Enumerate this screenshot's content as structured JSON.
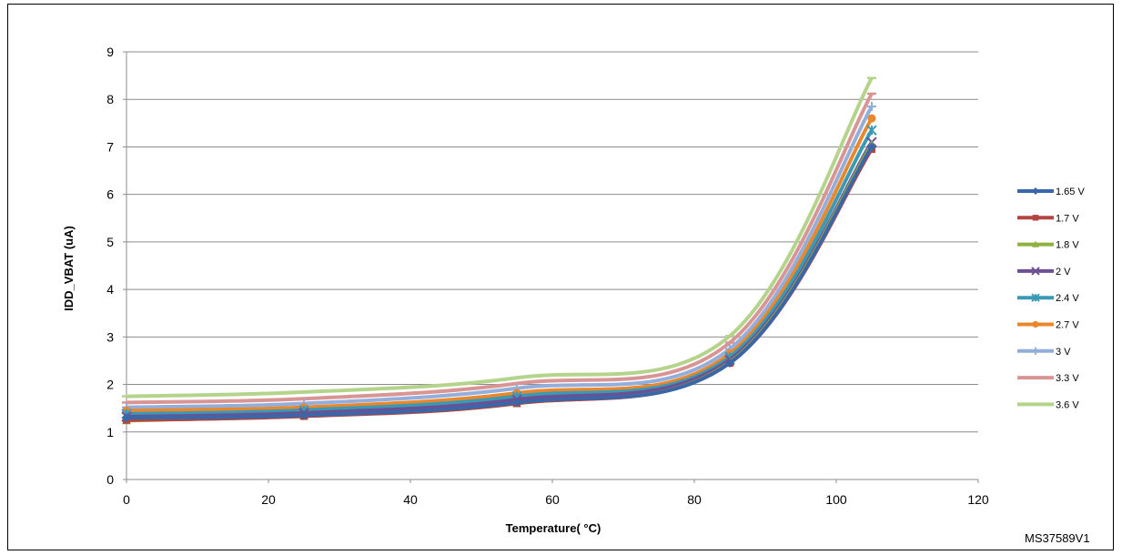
{
  "chart_data": {
    "type": "line",
    "title": "",
    "xlabel": "Temperature( °C)",
    "ylabel": "IDD_VBAT (uA)",
    "xlim": [
      0,
      120
    ],
    "ylim": [
      0,
      9
    ],
    "xticks": [
      0,
      20,
      40,
      60,
      80,
      100,
      120
    ],
    "yticks": [
      0,
      1,
      2,
      3,
      4,
      5,
      6,
      7,
      8,
      9
    ],
    "grid": "horizontal",
    "legend": "right",
    "x": [
      0,
      25,
      55,
      85,
      105
    ],
    "series": [
      {
        "name": "1.65 V",
        "color": "#3a67a8",
        "marker": "diamond",
        "values": [
          1.3,
          1.35,
          1.62,
          2.45,
          7.0
        ]
      },
      {
        "name": "1.7 V",
        "color": "#b34441",
        "marker": "square",
        "values": [
          1.25,
          1.33,
          1.6,
          2.45,
          6.95
        ]
      },
      {
        "name": "1.8 V",
        "color": "#8eb140",
        "marker": "triangle",
        "values": [
          1.24,
          1.34,
          1.6,
          2.47,
          7.05
        ]
      },
      {
        "name": "2 V",
        "color": "#6d4f96",
        "marker": "x",
        "values": [
          1.32,
          1.4,
          1.68,
          2.52,
          7.1
        ]
      },
      {
        "name": "2.4 V",
        "color": "#3a9ab5",
        "marker": "star",
        "values": [
          1.38,
          1.46,
          1.75,
          2.58,
          7.35
        ]
      },
      {
        "name": "2.7 V",
        "color": "#e8872c",
        "marker": "circle",
        "values": [
          1.45,
          1.52,
          1.82,
          2.65,
          7.6
        ]
      },
      {
        "name": "3 V",
        "color": "#93aedb",
        "marker": "plus",
        "values": [
          1.52,
          1.6,
          1.92,
          2.75,
          7.85
        ]
      },
      {
        "name": "3.3 V",
        "color": "#d99594",
        "marker": "dash",
        "values": [
          1.62,
          1.7,
          2.02,
          2.88,
          8.12
        ]
      },
      {
        "name": "3.6 V",
        "color": "#b4d48c",
        "marker": "dash",
        "values": [
          1.75,
          1.84,
          2.14,
          3.02,
          8.45
        ]
      }
    ]
  },
  "figure_code": "MS37589V1"
}
